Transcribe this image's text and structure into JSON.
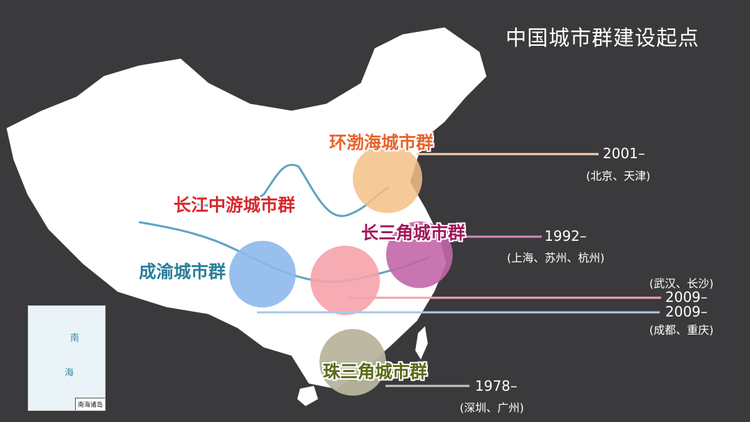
{
  "title": "中国城市群建设起点",
  "clusters": [
    {
      "name": "环渤海城市群",
      "year": "2001–",
      "cities": "(北京、天津)",
      "color": "#e8642c",
      "circle_color": "#f5c086"
    },
    {
      "name": "长江中游城市群",
      "year": "2009–",
      "cities": "(武汉、长沙)",
      "color": "#d8282c",
      "circle_color": "#f6a2aa"
    },
    {
      "name": "长三角城市群",
      "year": "1992–",
      "cities": "(上海、苏州、杭州)",
      "color": "#a0185a",
      "circle_color": "#c266a8"
    },
    {
      "name": "成渝城市群",
      "year": "2009–",
      "cities": "(成都、重庆)",
      "color": "#2a7f9a",
      "circle_color": "#8db8ec"
    },
    {
      "name": "珠三角城市群",
      "year": "1978–",
      "cities": "(深圳、广州)",
      "color": "#5a6a18",
      "circle_color": "#b8b49c"
    }
  ],
  "inset": {
    "label": "南海诸岛",
    "sea_1": "南",
    "sea_2": "海"
  },
  "background": "#3a393c"
}
